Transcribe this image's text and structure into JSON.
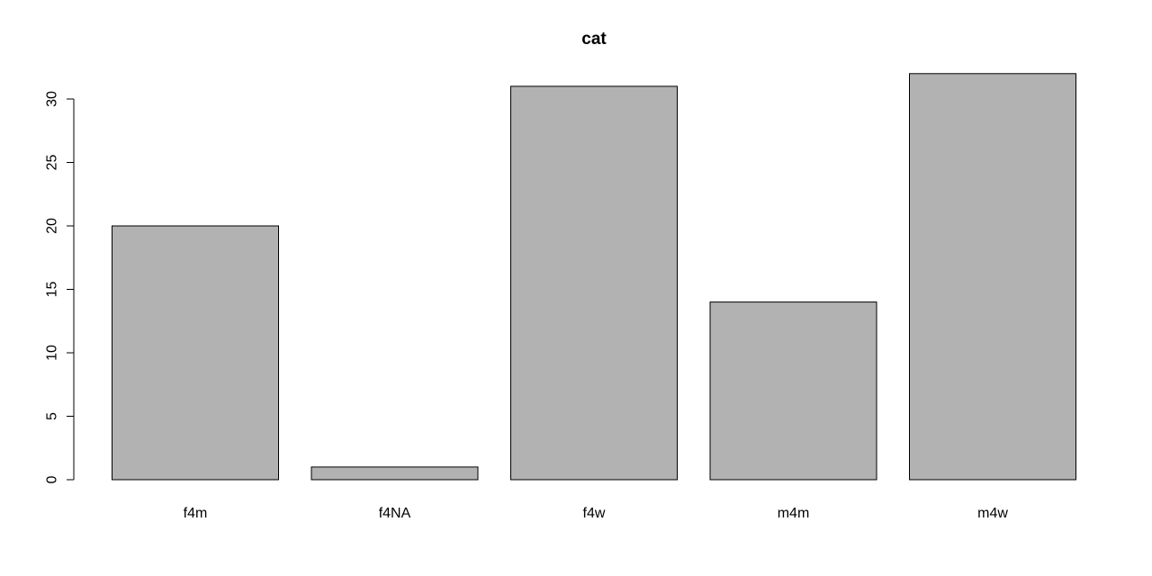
{
  "chart_data": {
    "type": "bar",
    "title": "cat",
    "xlabel": "",
    "ylabel": "",
    "categories": [
      "f4m",
      "f4NA",
      "f4w",
      "m4m",
      "m4w"
    ],
    "values": [
      20,
      1,
      31,
      14,
      32
    ],
    "ylim": [
      0,
      32
    ],
    "yticks": [
      0,
      5,
      10,
      15,
      20,
      25,
      30
    ],
    "bar_color": "#b2b2b2",
    "grid": false
  }
}
